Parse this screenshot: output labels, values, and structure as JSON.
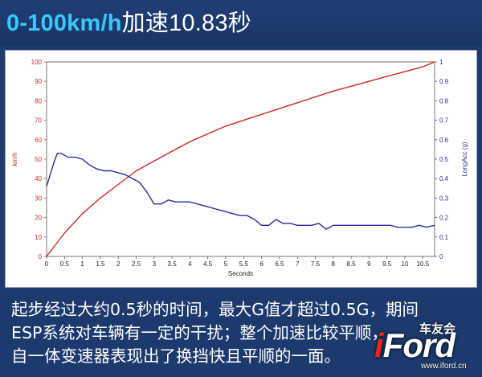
{
  "header": {
    "title_lead": "0-100km/h",
    "title_mid": "加速",
    "title_value": "10.83",
    "title_unit": "秒"
  },
  "chart_data": {
    "type": "line",
    "xlabel": "Seconds",
    "ylabel_left": "km/h",
    "ylabel_right": "LongAcc (g)",
    "xlim": [
      0,
      10.83
    ],
    "ylim_left": [
      0,
      100
    ],
    "ylim_right": [
      0,
      1
    ],
    "x_ticks": [
      "0",
      "0.5",
      "1",
      "1.5",
      "2",
      "2.5",
      "3",
      "3.5",
      "4",
      "4.5",
      "5",
      "5.5",
      "6",
      "6.5",
      "7",
      "7.5",
      "8",
      "8.5",
      "9",
      "9.5",
      "10",
      "10.5"
    ],
    "y_left_ticks": [
      "0",
      "10",
      "20",
      "30",
      "40",
      "50",
      "60",
      "70",
      "80",
      "90",
      "100"
    ],
    "y_right_ticks": [
      "0",
      "0.1",
      "0.2",
      "0.3",
      "0.4",
      "0.5",
      "0.6",
      "0.7",
      "0.8",
      "0.9",
      "1"
    ],
    "grid": false,
    "series": [
      {
        "color": "#cc2a22",
        "axis": "left",
        "x": [
          0,
          0.5,
          1,
          1.5,
          2,
          2.5,
          3,
          3.5,
          4,
          4.5,
          5,
          5.5,
          6,
          6.5,
          7,
          7.5,
          8,
          8.5,
          9,
          9.5,
          10,
          10.5,
          10.83
        ],
        "y": [
          0,
          12,
          22,
          30,
          37,
          44,
          49,
          54,
          59,
          63,
          67,
          70,
          73,
          76,
          79,
          82,
          85,
          87.5,
          90,
          92.5,
          95,
          97.5,
          100
        ]
      },
      {
        "color": "#2b2b9a",
        "axis": "right",
        "x": [
          0,
          0.1,
          0.2,
          0.3,
          0.4,
          0.5,
          0.6,
          0.8,
          1.0,
          1.2,
          1.4,
          1.6,
          1.8,
          2.0,
          2.2,
          2.4,
          2.6,
          2.8,
          3.0,
          3.2,
          3.4,
          3.6,
          3.8,
          4.0,
          4.2,
          4.4,
          4.6,
          4.8,
          5.0,
          5.2,
          5.4,
          5.6,
          5.8,
          6.0,
          6.2,
          6.4,
          6.6,
          6.8,
          7.0,
          7.2,
          7.4,
          7.6,
          7.8,
          8.0,
          8.2,
          8.4,
          8.6,
          8.8,
          9.0,
          9.2,
          9.4,
          9.6,
          9.8,
          10.0,
          10.2,
          10.4,
          10.6,
          10.83
        ],
        "y": [
          0.36,
          0.42,
          0.48,
          0.53,
          0.53,
          0.52,
          0.51,
          0.51,
          0.5,
          0.47,
          0.45,
          0.44,
          0.44,
          0.43,
          0.42,
          0.4,
          0.38,
          0.33,
          0.27,
          0.27,
          0.29,
          0.28,
          0.28,
          0.28,
          0.27,
          0.26,
          0.25,
          0.24,
          0.23,
          0.22,
          0.21,
          0.21,
          0.19,
          0.16,
          0.16,
          0.19,
          0.17,
          0.17,
          0.16,
          0.16,
          0.16,
          0.17,
          0.14,
          0.16,
          0.16,
          0.16,
          0.16,
          0.16,
          0.16,
          0.16,
          0.16,
          0.16,
          0.15,
          0.15,
          0.15,
          0.16,
          0.15,
          0.16
        ]
      }
    ]
  },
  "caption": {
    "line1": "起步经过大约0.5秒的时间，最大G值才超过0.5G，期间",
    "line2": "ESP系统对车辆有一定的干扰；整个加速比较平顺，",
    "line3": "自一体变速器表现出了换挡快且平顺的一面。"
  },
  "logo": {
    "club": "车友会",
    "brand_i": "i",
    "brand_rest": "Ford",
    "url": "www.iford.cn"
  }
}
